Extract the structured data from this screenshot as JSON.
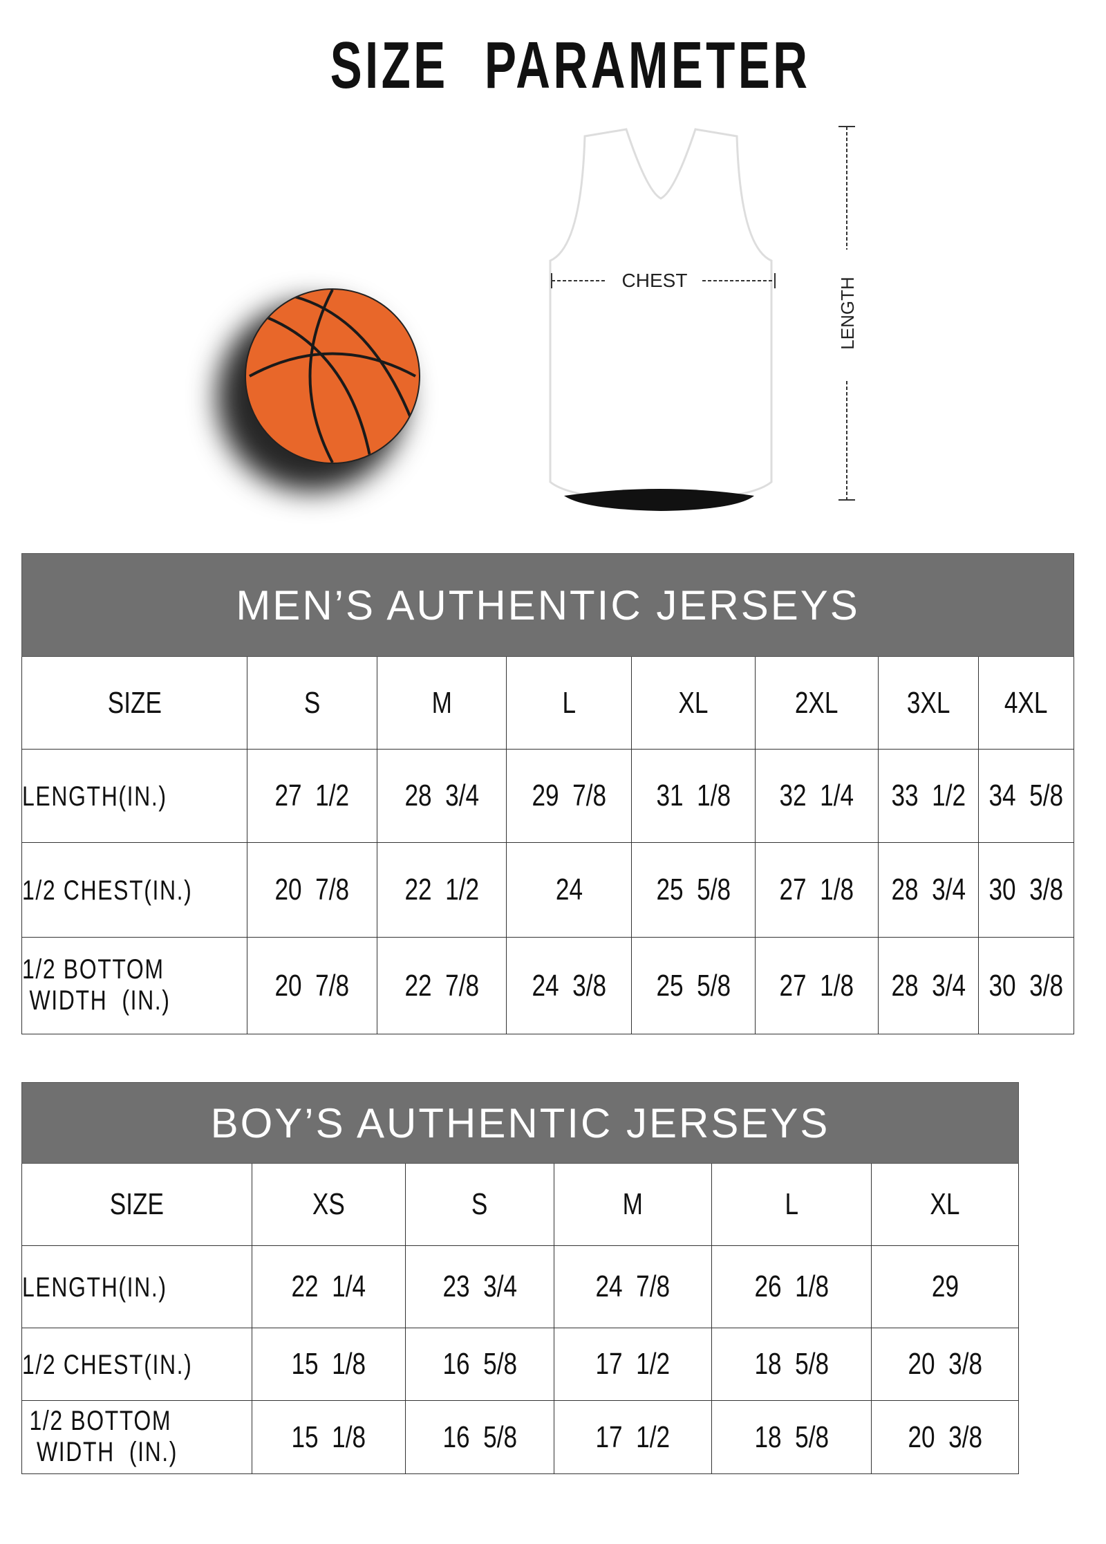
{
  "title": "SIZE PARAMETER",
  "diagram": {
    "chest_label": "CHEST",
    "length_label": "LENGTH",
    "ball_color": "#e8672a"
  },
  "mens": {
    "title": "MEN’S AUTHENTIC JERSEYS",
    "header": [
      "SIZE",
      "S",
      "M",
      "L",
      "XL",
      "2XL",
      "3XL",
      "4XL"
    ],
    "rows": [
      {
        "label": "LENGTH(IN.)",
        "values": [
          "27  1/2",
          "28  3/4",
          "29  7/8",
          "31  1/8",
          "32  1/4",
          "33  1/2",
          "34  5/8"
        ]
      },
      {
        "label": "1/2 CHEST(IN.)",
        "values": [
          "20  7/8",
          "22  1/2",
          "24",
          "25  5/8",
          "27  1/8",
          "28  3/4",
          "30  3/8"
        ]
      },
      {
        "label": "1/2 BOTTOM\n WIDTH  (IN.)",
        "values": [
          "20  7/8",
          "22  7/8",
          "24  3/8",
          "25  5/8",
          "27  1/8",
          "28  3/4",
          "30  3/8"
        ]
      }
    ]
  },
  "boys": {
    "title": "BOY’S AUTHENTIC JERSEYS",
    "header": [
      "SIZE",
      "XS",
      "S",
      "M",
      "L",
      "XL"
    ],
    "rows": [
      {
        "label": "LENGTH(IN.)",
        "values": [
          "22  1/4",
          "23  3/4",
          "24  7/8",
          "26  1/8",
          "29"
        ]
      },
      {
        "label": "1/2 CHEST(IN.)",
        "values": [
          "15  1/8",
          "16  5/8",
          "17  1/2",
          "18  5/8",
          "20  3/8"
        ]
      },
      {
        "label": " 1/2 BOTTOM\n  WIDTH  (IN.)",
        "values": [
          "15  1/8",
          "16  5/8",
          "17  1/2",
          "18  5/8",
          "20  3/8"
        ]
      }
    ]
  },
  "colors": {
    "header_bg": "#707070",
    "header_text": "#ffffff"
  }
}
